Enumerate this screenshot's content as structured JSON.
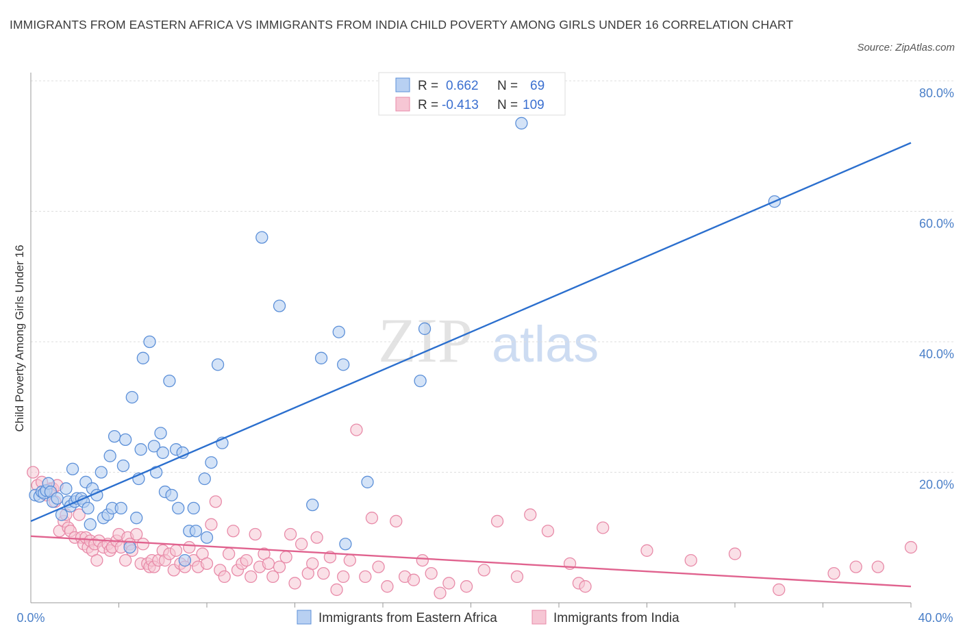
{
  "title": "IMMIGRANTS FROM EASTERN AFRICA VS IMMIGRANTS FROM INDIA CHILD POVERTY AMONG GIRLS UNDER 16 CORRELATION CHART",
  "source": "Source: ZipAtlas.com",
  "watermark": {
    "zip": "ZIP",
    "atlas": "atlas"
  },
  "legend": {
    "series1": {
      "r_label": "R =",
      "r_value": "0.662",
      "n_label": "N =",
      "n_value": "69"
    },
    "series2": {
      "r_label": "R =",
      "r_value": "-0.413",
      "n_label": "N =",
      "n_value": "109"
    }
  },
  "colors": {
    "blue": "#5b8fd8",
    "blue_fill": "#b8d0f2",
    "blue_line": "#2b6fce",
    "pink": "#e88aa8",
    "pink_fill": "#f6c6d4",
    "pink_line": "#e0628e"
  },
  "chart_data": {
    "type": "scatter",
    "title": "IMMIGRANTS FROM EASTERN AFRICA VS IMMIGRANTS FROM INDIA CHILD POVERTY AMONG GIRLS UNDER 16 CORRELATION CHART",
    "xlabel": "",
    "ylabel": "Child Poverty Among Girls Under 16",
    "xlim": [
      0,
      40
    ],
    "ylim": [
      0,
      80
    ],
    "x_tick_labels": [
      "0.0%",
      "40.0%"
    ],
    "y_tick_labels": [
      "20.0%",
      "40.0%",
      "60.0%",
      "80.0%"
    ],
    "y_ticks": [
      20,
      40,
      60,
      80
    ],
    "grid": true,
    "legend_position": "top-center",
    "series": [
      {
        "name": "Immigrants from Eastern Africa",
        "color": "#5b8fd8",
        "r": 0.662,
        "n": 69,
        "trend": [
          [
            0,
            12.5
          ],
          [
            40,
            70.5
          ]
        ],
        "points": [
          [
            0.2,
            16.5
          ],
          [
            0.4,
            16.3
          ],
          [
            0.5,
            17.0
          ],
          [
            0.6,
            16.8
          ],
          [
            0.7,
            17.2
          ],
          [
            0.8,
            18.3
          ],
          [
            0.9,
            17.0
          ],
          [
            1.0,
            15.5
          ],
          [
            1.2,
            16.0
          ],
          [
            1.4,
            13.5
          ],
          [
            1.6,
            17.5
          ],
          [
            1.7,
            15.5
          ],
          [
            1.8,
            14.8
          ],
          [
            1.9,
            20.5
          ],
          [
            2.0,
            15.5
          ],
          [
            2.1,
            16.0
          ],
          [
            2.3,
            16.0
          ],
          [
            2.4,
            15.5
          ],
          [
            2.5,
            18.5
          ],
          [
            2.6,
            14.5
          ],
          [
            2.7,
            12.0
          ],
          [
            2.8,
            17.5
          ],
          [
            3.0,
            16.5
          ],
          [
            3.2,
            20.0
          ],
          [
            3.3,
            13.0
          ],
          [
            3.5,
            13.5
          ],
          [
            3.6,
            22.5
          ],
          [
            3.7,
            14.5
          ],
          [
            3.8,
            25.5
          ],
          [
            4.1,
            14.5
          ],
          [
            4.2,
            21.0
          ],
          [
            4.3,
            25.0
          ],
          [
            4.5,
            8.5
          ],
          [
            4.6,
            31.5
          ],
          [
            4.8,
            13.0
          ],
          [
            4.9,
            19.0
          ],
          [
            5.0,
            23.5
          ],
          [
            5.1,
            37.5
          ],
          [
            5.4,
            40.0
          ],
          [
            5.6,
            24.0
          ],
          [
            5.7,
            20.0
          ],
          [
            5.9,
            26.0
          ],
          [
            6.0,
            23.0
          ],
          [
            6.1,
            17.0
          ],
          [
            6.3,
            34.0
          ],
          [
            6.4,
            16.5
          ],
          [
            6.6,
            23.5
          ],
          [
            6.7,
            14.5
          ],
          [
            6.9,
            23.0
          ],
          [
            7.0,
            6.5
          ],
          [
            7.2,
            11.0
          ],
          [
            7.4,
            14.5
          ],
          [
            7.5,
            11.0
          ],
          [
            7.9,
            19.0
          ],
          [
            8.0,
            10.0
          ],
          [
            8.2,
            21.5
          ],
          [
            8.5,
            36.5
          ],
          [
            8.7,
            24.5
          ],
          [
            10.5,
            56.0
          ],
          [
            11.3,
            45.5
          ],
          [
            12.8,
            15.0
          ],
          [
            13.2,
            37.5
          ],
          [
            14.0,
            41.5
          ],
          [
            14.2,
            36.5
          ],
          [
            14.3,
            9.0
          ],
          [
            15.3,
            18.5
          ],
          [
            17.7,
            34.0
          ],
          [
            17.9,
            42.0
          ],
          [
            22.3,
            73.5
          ],
          [
            33.8,
            61.5
          ]
        ]
      },
      {
        "name": "Immigrants from India",
        "color": "#e88aa8",
        "r": -0.413,
        "n": 109,
        "trend": [
          [
            0,
            10.2
          ],
          [
            40,
            2.5
          ]
        ],
        "points": [
          [
            0.1,
            20.0
          ],
          [
            0.3,
            18.0
          ],
          [
            0.5,
            18.5
          ],
          [
            0.7,
            16.5
          ],
          [
            0.9,
            17.5
          ],
          [
            1.0,
            17.5
          ],
          [
            1.1,
            15.5
          ],
          [
            1.2,
            18.0
          ],
          [
            1.3,
            11.0
          ],
          [
            1.5,
            12.5
          ],
          [
            1.6,
            13.5
          ],
          [
            1.7,
            11.5
          ],
          [
            1.8,
            11.0
          ],
          [
            2.0,
            10.0
          ],
          [
            2.2,
            13.5
          ],
          [
            2.3,
            10.0
          ],
          [
            2.4,
            9.0
          ],
          [
            2.5,
            10.0
          ],
          [
            2.6,
            8.5
          ],
          [
            2.7,
            9.5
          ],
          [
            2.8,
            8.0
          ],
          [
            2.9,
            9.0
          ],
          [
            3.0,
            6.5
          ],
          [
            3.1,
            9.5
          ],
          [
            3.3,
            8.5
          ],
          [
            3.5,
            9.0
          ],
          [
            3.6,
            8.0
          ],
          [
            3.7,
            8.5
          ],
          [
            3.9,
            9.5
          ],
          [
            4.0,
            10.5
          ],
          [
            4.1,
            8.5
          ],
          [
            4.3,
            6.5
          ],
          [
            4.4,
            10.0
          ],
          [
            4.5,
            9.0
          ],
          [
            4.6,
            8.0
          ],
          [
            4.8,
            10.5
          ],
          [
            5.0,
            6.0
          ],
          [
            5.1,
            9.0
          ],
          [
            5.3,
            6.0
          ],
          [
            5.4,
            5.5
          ],
          [
            5.5,
            6.5
          ],
          [
            5.6,
            5.5
          ],
          [
            5.8,
            6.5
          ],
          [
            6.0,
            8.0
          ],
          [
            6.1,
            6.5
          ],
          [
            6.3,
            7.5
          ],
          [
            6.5,
            5.0
          ],
          [
            6.6,
            8.0
          ],
          [
            6.8,
            6.0
          ],
          [
            7.0,
            5.5
          ],
          [
            7.2,
            8.5
          ],
          [
            7.4,
            6.5
          ],
          [
            7.6,
            5.5
          ],
          [
            7.8,
            7.5
          ],
          [
            8.0,
            6.0
          ],
          [
            8.2,
            12.0
          ],
          [
            8.4,
            15.5
          ],
          [
            8.6,
            5.0
          ],
          [
            8.8,
            4.0
          ],
          [
            9.0,
            7.5
          ],
          [
            9.2,
            11.0
          ],
          [
            9.4,
            5.0
          ],
          [
            9.6,
            6.0
          ],
          [
            9.8,
            6.5
          ],
          [
            10.0,
            4.0
          ],
          [
            10.2,
            10.5
          ],
          [
            10.4,
            5.5
          ],
          [
            10.6,
            7.5
          ],
          [
            10.8,
            6.0
          ],
          [
            11.0,
            4.0
          ],
          [
            11.3,
            5.5
          ],
          [
            11.6,
            7.0
          ],
          [
            11.8,
            10.5
          ],
          [
            12.0,
            3.0
          ],
          [
            12.3,
            9.0
          ],
          [
            12.6,
            4.5
          ],
          [
            12.8,
            6.0
          ],
          [
            13.0,
            10.0
          ],
          [
            13.3,
            4.5
          ],
          [
            13.6,
            7.0
          ],
          [
            13.9,
            2.0
          ],
          [
            14.2,
            4.0
          ],
          [
            14.5,
            6.5
          ],
          [
            14.8,
            26.5
          ],
          [
            15.2,
            4.0
          ],
          [
            15.5,
            13.0
          ],
          [
            15.8,
            5.5
          ],
          [
            16.2,
            2.5
          ],
          [
            16.6,
            12.5
          ],
          [
            17.0,
            4.0
          ],
          [
            17.4,
            3.5
          ],
          [
            17.8,
            6.5
          ],
          [
            18.2,
            4.5
          ],
          [
            18.6,
            1.5
          ],
          [
            19.0,
            3.0
          ],
          [
            19.8,
            2.5
          ],
          [
            20.6,
            5.0
          ],
          [
            21.2,
            12.5
          ],
          [
            22.1,
            4.0
          ],
          [
            22.7,
            13.5
          ],
          [
            23.5,
            11.0
          ],
          [
            24.5,
            6.0
          ],
          [
            24.9,
            3.0
          ],
          [
            25.2,
            2.5
          ],
          [
            26.0,
            11.5
          ],
          [
            28.0,
            8.0
          ],
          [
            30.0,
            6.5
          ],
          [
            32.0,
            7.5
          ],
          [
            34.0,
            2.0
          ],
          [
            36.5,
            4.5
          ],
          [
            37.5,
            5.5
          ],
          [
            38.5,
            5.5
          ],
          [
            40.0,
            8.5
          ]
        ]
      }
    ]
  },
  "bottom_legend": [
    "Immigrants from Eastern Africa",
    "Immigrants from India"
  ]
}
